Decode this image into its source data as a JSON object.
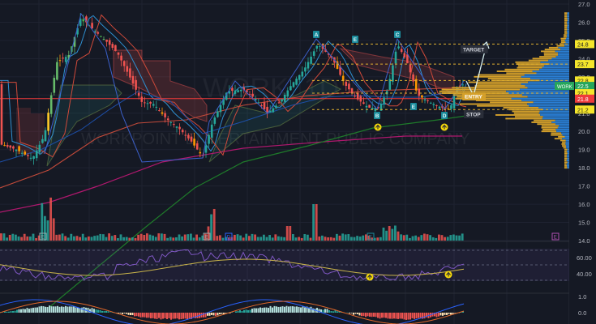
{
  "chart_data": {
    "type": "candlestick",
    "symbol": "WORK",
    "timeframe": "1D",
    "watermark": {
      "symbol_line": "WORK, 1D",
      "company_line": "WORKPOINT ENTERTAINMENT PUBLIC COMPANY"
    },
    "price_axis": {
      "ticks": [
        "27.0",
        "26.0",
        "25.0",
        "24.0",
        "23.0",
        "22.0",
        "21.0",
        "20.0",
        "19.0",
        "18.0",
        "17.0",
        "16.0",
        "15.0",
        "14.0"
      ],
      "range": [
        14.0,
        27.0
      ]
    },
    "price_labels": [
      {
        "value": "24.8",
        "kind": "target",
        "color": "#f5e62b"
      },
      {
        "value": "23.7",
        "kind": "level",
        "color": "#f5e62b"
      },
      {
        "value": "22.8",
        "kind": "level",
        "color": "#f5e62b"
      },
      {
        "value": "22.5",
        "kind": "last-price",
        "color": "#26a65b",
        "symbol": "WORK"
      },
      {
        "value": "22.1",
        "kind": "entry",
        "color": "#f5e62b"
      },
      {
        "value": "21.8",
        "kind": "line",
        "color": "#ef3b3b"
      },
      {
        "value": "21.2",
        "kind": "stop",
        "color": "#f5e62b"
      }
    ],
    "pattern": {
      "name": "ABCD",
      "points": [
        {
          "label": "A",
          "price": 24.8
        },
        {
          "label": "B",
          "price": 21.2
        },
        {
          "label": "C",
          "price": 24.8
        },
        {
          "label": "D",
          "price": 21.2
        }
      ],
      "markers": [
        "E",
        "E"
      ],
      "annotations": [
        "TARGET",
        "ENTRY",
        "STOP"
      ]
    },
    "volume_markers": [
      "E",
      "E",
      "D",
      "E",
      "E"
    ],
    "rsi": {
      "ticks": [
        "60.00",
        "40.00"
      ],
      "range": [
        30,
        70
      ],
      "signals": [
        "buy",
        "buy"
      ]
    },
    "macd": {
      "ticks": [
        "1.0",
        "0.0"
      ]
    },
    "colors": {
      "background": "#151924",
      "up": "#26a69a",
      "down": "#ef5350",
      "volume_profile_up": "#2a7fd4",
      "volume_profile_down": "#d4a02a",
      "rsi_line": "#7e57c2",
      "rsi_ma": "#c9b44a",
      "level_dash": "#e0b030"
    }
  }
}
